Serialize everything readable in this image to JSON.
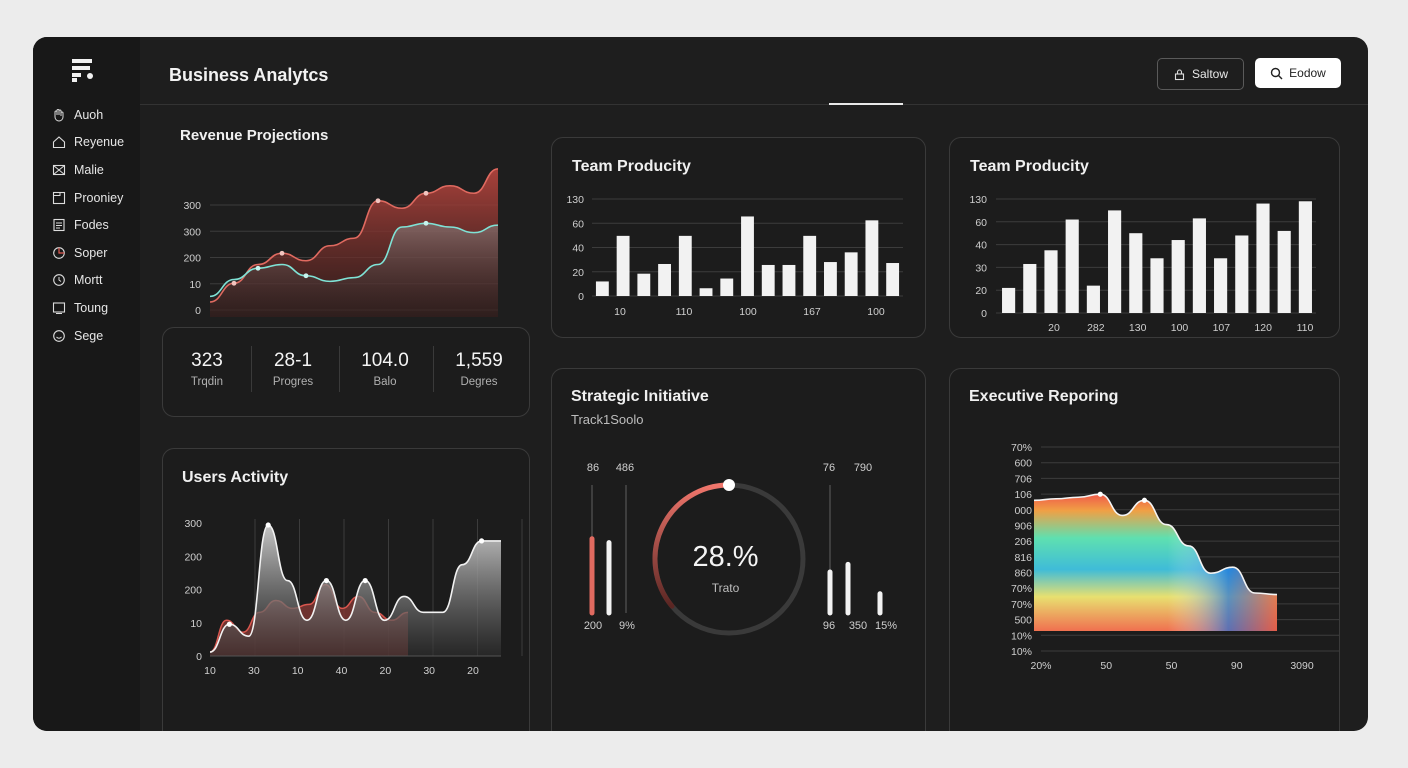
{
  "app": {
    "title": "Business Analytcs"
  },
  "header": {
    "buttons": [
      {
        "label": "Saltow",
        "icon": "lock-icon"
      },
      {
        "label": "Eodow",
        "icon": "search-icon"
      }
    ]
  },
  "sidebar": {
    "logo": "logo-icon",
    "items": [
      {
        "label": "Auoh",
        "icon": "hand-icon"
      },
      {
        "label": "Reyenue",
        "icon": "home-icon"
      },
      {
        "label": "Malie",
        "icon": "mail-icon"
      },
      {
        "label": "Prooniey",
        "icon": "folder-icon"
      },
      {
        "label": "Fodes",
        "icon": "document-icon"
      },
      {
        "label": "Soper",
        "icon": "pie-icon"
      },
      {
        "label": "Mortt",
        "icon": "clock-icon"
      },
      {
        "label": "Toung",
        "icon": "board-icon"
      },
      {
        "label": "Sege",
        "icon": "smile-icon"
      }
    ]
  },
  "stats": [
    {
      "value": "323",
      "label": "Trqdin"
    },
    {
      "value": "28-1",
      "label": "Progres"
    },
    {
      "value": "104.0",
      "label": "Balo"
    },
    {
      "value": "1,559",
      "label": "Degres"
    }
  ],
  "colors": {
    "bg": "#1e1e1e",
    "sidebar": "#181818",
    "accent_red": "#d9574f",
    "accent_teal": "#6fe0d0",
    "bar": "#f2f2f2"
  },
  "chart_data": [
    {
      "type": "area",
      "title": "Revenue Projections",
      "y_ticks": [
        "300",
        "300",
        "200",
        "10",
        "0"
      ],
      "series": [
        {
          "values": [
            40,
            90,
            140,
            170,
            150,
            190,
            210,
            310,
            290,
            330,
            350,
            330,
            395
          ]
        },
        {
          "values": [
            55,
            100,
            130,
            140,
            110,
            95,
            105,
            140,
            240,
            250,
            240,
            225,
            245
          ]
        }
      ],
      "grid": true
    },
    {
      "type": "bar",
      "title": "Team Producity",
      "y_ticks": [
        "130",
        "60",
        "40",
        "20",
        "0"
      ],
      "x_ticks": [
        "10",
        "110",
        "100",
        "167",
        "100"
      ],
      "values": [
        15,
        62,
        23,
        33,
        62,
        8,
        18,
        82,
        32,
        32,
        62,
        35,
        45,
        78,
        34
      ],
      "grid": true
    },
    {
      "type": "bar",
      "title": "Team Producity",
      "y_ticks": [
        "130",
        "60",
        "40",
        "30",
        "20",
        "0"
      ],
      "x_ticks": [
        "20",
        "282",
        "130",
        "100",
        "107",
        "120",
        "110"
      ],
      "values": [
        22,
        43,
        55,
        82,
        24,
        90,
        70,
        48,
        64,
        83,
        48,
        68,
        96,
        72,
        98
      ],
      "grid": true
    },
    {
      "type": "area",
      "title": "Users Activity",
      "y_ticks": [
        "300",
        "200",
        "200",
        "10",
        "0"
      ],
      "x_ticks": [
        "10",
        "30",
        "10",
        "40",
        "20",
        "30",
        "20"
      ],
      "series": [
        {
          "values": [
            5,
            40,
            25,
            165,
            95,
            45,
            95,
            45,
            95,
            45,
            75,
            55,
            55,
            115,
            145,
            145
          ]
        },
        {
          "values": [
            5,
            45,
            30,
            55,
            70,
            60,
            65,
            90,
            60,
            75,
            55,
            45,
            55
          ]
        }
      ],
      "grid": true
    },
    {
      "type": "gauge",
      "title": "Strategic Initiative",
      "subtitle": "Track1Soolo",
      "value_label": "28.%",
      "center_label": "Trato",
      "value": 0.28,
      "left_bars": {
        "top_labels": [
          "86",
          "486"
        ],
        "bottom_labels": [
          "200",
          "9%"
        ],
        "values": [
          0.58,
          0.55
        ]
      },
      "right_bars": {
        "top_labels": [
          "76",
          "790"
        ],
        "bottom_labels": [
          "96",
          "350",
          "15%"
        ],
        "values": [
          0.32,
          0.38,
          0.15
        ]
      }
    },
    {
      "type": "heatmap",
      "title": "Executive Reporing",
      "y_ticks": [
        "70%",
        "600",
        "706",
        "106",
        "000",
        "906",
        "206",
        "816",
        "860",
        "70%",
        "70%",
        "500",
        "10%",
        "10%"
      ],
      "x_ticks": [
        "20%",
        "50",
        "50",
        "90",
        "3090"
      ],
      "profile": [
        0.86,
        0.87,
        0.88,
        0.9,
        0.76,
        0.86,
        0.7,
        0.56,
        0.38,
        0.42,
        0.25,
        0.24
      ],
      "grid": true
    }
  ]
}
